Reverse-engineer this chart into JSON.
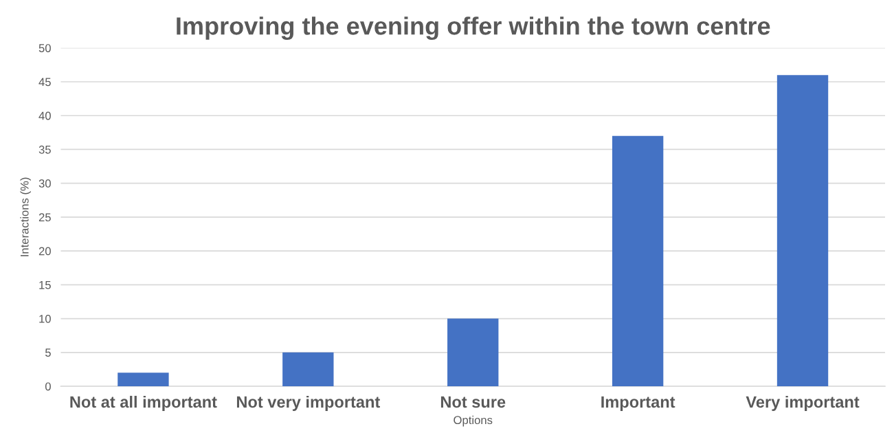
{
  "chart_data": {
    "type": "bar",
    "title": "Improving the evening offer within the town centre",
    "xlabel": "Options",
    "ylabel": "Interactions (%)",
    "categories": [
      "Not at all important",
      "Not very important",
      "Not sure",
      "Important",
      "Very important"
    ],
    "values": [
      2,
      5,
      10,
      37,
      46
    ],
    "color": "#4472c4",
    "ylim": [
      0,
      50
    ],
    "yticks": [
      0,
      5,
      10,
      15,
      20,
      25,
      30,
      35,
      40,
      45,
      50
    ],
    "grid": "y"
  }
}
